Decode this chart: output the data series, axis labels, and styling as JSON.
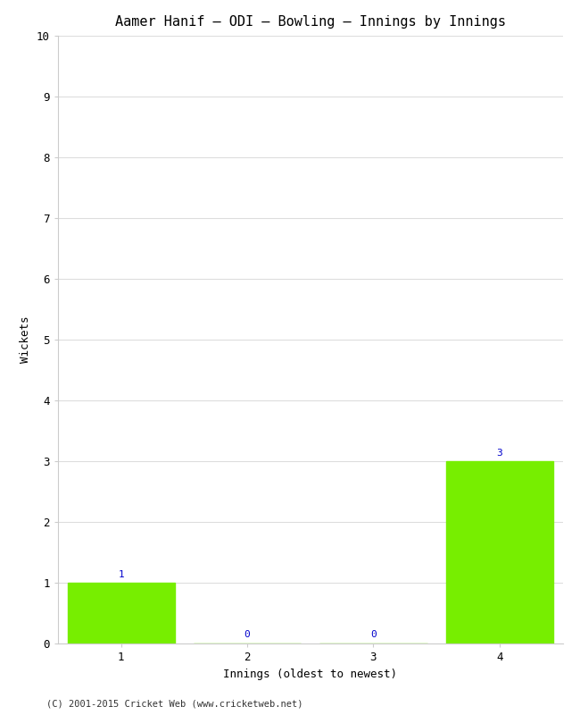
{
  "title": "Aamer Hanif – ODI – Bowling – Innings by Innings",
  "xlabel": "Innings (oldest to newest)",
  "ylabel": "Wickets",
  "categories": [
    "1",
    "2",
    "3",
    "4"
  ],
  "values": [
    1,
    0,
    0,
    3
  ],
  "bar_color": "#77ee00",
  "label_color": "#0000cc",
  "ylim": [
    0,
    10
  ],
  "yticks": [
    0,
    1,
    2,
    3,
    4,
    5,
    6,
    7,
    8,
    9,
    10
  ],
  "background_color": "#ffffff",
  "footer": "(C) 2001-2015 Cricket Web (www.cricketweb.net)",
  "grid_color": "#dddddd",
  "bar_width": 0.85,
  "title_fontsize": 11,
  "axis_fontsize": 9,
  "label_fontsize": 8
}
